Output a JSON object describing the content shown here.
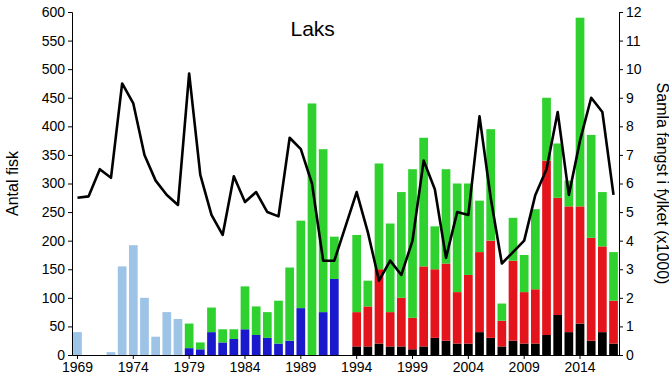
{
  "chart_data": {
    "type": "bar",
    "title": "Laks",
    "y_label": "Antal fisk",
    "y2_label": "Samla fangst i fylket (x1000)",
    "stacked": true,
    "categories": [
      "1969",
      null,
      null,
      null,
      null,
      "1974",
      null,
      null,
      null,
      null,
      "1979",
      null,
      null,
      null,
      null,
      "1984",
      null,
      null,
      null,
      null,
      "1989",
      null,
      null,
      null,
      null,
      "1994",
      null,
      null,
      null,
      null,
      "1999",
      null,
      null,
      null,
      null,
      "2004",
      null,
      null,
      null,
      null,
      "2009",
      null,
      null,
      null,
      null,
      "2014",
      null,
      null,
      null
    ],
    "series": [
      {
        "type": "bar",
        "color": "#9dc3e6",
        "values": [
          40,
          0,
          0,
          5,
          155,
          192,
          100,
          32,
          75,
          63,
          null,
          null,
          null,
          null,
          null,
          null,
          null,
          null,
          null,
          null,
          null,
          null,
          null,
          null,
          null,
          null,
          null,
          null,
          null,
          null,
          null,
          null,
          null,
          null,
          null,
          null,
          null,
          null,
          null,
          null,
          null,
          null,
          null,
          null,
          null,
          null,
          null,
          null,
          null
        ]
      },
      {
        "type": "bar",
        "color": "#000000",
        "values": [
          null,
          null,
          null,
          null,
          null,
          null,
          null,
          null,
          null,
          null,
          null,
          null,
          null,
          null,
          null,
          null,
          null,
          null,
          null,
          null,
          null,
          null,
          null,
          null,
          null,
          15,
          15,
          20,
          15,
          15,
          10,
          15,
          30,
          25,
          20,
          20,
          40,
          30,
          15,
          25,
          20,
          20,
          35,
          70,
          40,
          55,
          25,
          40,
          20
        ]
      },
      {
        "type": "bar",
        "color": "#e3141c",
        "values": [
          null,
          null,
          null,
          null,
          null,
          null,
          null,
          null,
          null,
          null,
          null,
          null,
          null,
          null,
          null,
          null,
          null,
          null,
          null,
          null,
          null,
          null,
          null,
          null,
          null,
          60,
          70,
          130,
          60,
          85,
          55,
          140,
          120,
          135,
          90,
          120,
          140,
          170,
          45,
          140,
          90,
          95,
          305,
          205,
          220,
          205,
          180,
          150,
          75
        ]
      },
      {
        "type": "bar",
        "color": "#1a1acc",
        "values": [
          null,
          null,
          null,
          null,
          null,
          null,
          null,
          null,
          null,
          null,
          12,
          10,
          40,
          22,
          28,
          45,
          35,
          30,
          20,
          25,
          82,
          0,
          75,
          133,
          null,
          null,
          null,
          null,
          null,
          null,
          null,
          null,
          null,
          null,
          null,
          null,
          null,
          null,
          null,
          null,
          null,
          null,
          null,
          null,
          null,
          null,
          null,
          null,
          null
        ]
      },
      {
        "type": "bar",
        "color": "#2ed12e",
        "values": [
          null,
          null,
          null,
          null,
          null,
          null,
          null,
          null,
          null,
          null,
          43,
          12,
          43,
          23,
          17,
          75,
          50,
          45,
          75,
          128,
          153,
          440,
          285,
          74,
          null,
          135,
          45,
          185,
          155,
          185,
          260,
          225,
          75,
          165,
          190,
          160,
          90,
          195,
          30,
          75,
          65,
          140,
          110,
          95,
          45,
          330,
          180,
          95,
          85
        ]
      },
      {
        "type": "line",
        "axis": "y2",
        "color": "#000000",
        "values": [
          5.5,
          5.55,
          6.5,
          6.2,
          9.5,
          8.8,
          7.0,
          6.1,
          5.6,
          5.25,
          9.85,
          6.3,
          4.9,
          4.2,
          6.25,
          5.35,
          5.7,
          5.0,
          4.85,
          7.6,
          7.2,
          6.0,
          3.3,
          3.3,
          4.5,
          5.7,
          4.3,
          2.6,
          3.3,
          2.8,
          4.0,
          6.8,
          5.8,
          3.4,
          5.0,
          4.9,
          8.35,
          5.5,
          3.2,
          3.6,
          4.0,
          5.6,
          6.5,
          8.5,
          5.6,
          7.5,
          9.0,
          8.5,
          5.6
        ]
      }
    ],
    "ylim": [
      0,
      600
    ],
    "yticks": [
      0,
      50,
      100,
      150,
      200,
      250,
      300,
      350,
      400,
      450,
      500,
      550,
      600
    ],
    "y2lim": [
      0,
      12
    ],
    "y2ticks": [
      0,
      1,
      2,
      3,
      4,
      5,
      6,
      7,
      8,
      9,
      10,
      11,
      12
    ],
    "grid": false
  }
}
